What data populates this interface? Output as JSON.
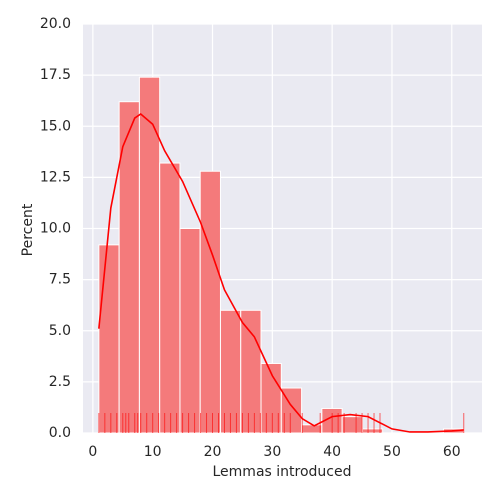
{
  "chart_data": {
    "type": "histogram",
    "xlabel": "Lemmas introduced",
    "ylabel": "Percent",
    "bins": [
      1,
      4.39,
      7.78,
      11.17,
      14.56,
      17.94,
      21.33,
      24.72,
      28.11,
      31.5,
      34.89,
      38.28,
      41.67,
      45.06,
      48.44,
      51.83,
      55.22,
      58.61,
      62
    ],
    "values": [
      9.2,
      16.2,
      17.4,
      13.2,
      10.0,
      12.8,
      6.0,
      6.0,
      3.4,
      2.2,
      0.4,
      1.2,
      0.8,
      0.2,
      0,
      0,
      0,
      0.2
    ],
    "color": "#f47a7b",
    "kde": {
      "color": "#ff0000",
      "x": [
        1,
        3,
        5,
        7,
        8,
        10,
        12,
        15,
        18,
        20,
        22,
        25,
        27,
        30,
        33,
        35,
        37,
        40,
        43,
        46,
        48,
        50,
        53,
        56,
        60,
        62
      ],
      "values": [
        5.1,
        11,
        14,
        15.4,
        15.6,
        15.1,
        13.8,
        12.3,
        10.3,
        8.7,
        7,
        5.4,
        4.7,
        2.8,
        1.4,
        0.7,
        0.35,
        0.8,
        0.9,
        0.8,
        0.5,
        0.2,
        0.05,
        0.05,
        0.1,
        0.15
      ]
    },
    "rug": {
      "color": "#ff0000",
      "x": [
        1,
        2,
        3,
        4,
        5,
        5.5,
        6,
        7,
        7.5,
        8,
        9,
        10,
        11,
        12,
        13,
        14,
        15,
        16,
        17,
        18,
        19,
        20,
        21,
        22,
        23,
        24,
        25,
        26,
        27,
        28,
        29,
        30,
        31,
        32,
        33,
        35,
        38,
        40,
        41,
        42,
        44,
        45,
        46,
        47,
        48,
        62
      ]
    },
    "xlim": [
      -1.65,
      65.05
    ],
    "ylim": [
      0,
      20
    ],
    "xticks": [
      0,
      10,
      20,
      30,
      40,
      50,
      60
    ],
    "yticks": [
      {
        "value": 0,
        "label": "0.0"
      },
      {
        "value": 2.5,
        "label": "2.5"
      },
      {
        "value": 5,
        "label": "5.0"
      },
      {
        "value": 7.5,
        "label": "7.5"
      },
      {
        "value": 10,
        "label": "10.0"
      },
      {
        "value": 12.5,
        "label": "12.5"
      },
      {
        "value": 15,
        "label": "15.0"
      },
      {
        "value": 17.5,
        "label": "17.5"
      },
      {
        "value": 20,
        "label": "20.0"
      }
    ],
    "grid": true
  }
}
